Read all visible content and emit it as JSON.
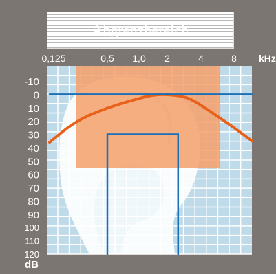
{
  "title": "Abgrenzbereich",
  "chart_data": {
    "type": "line",
    "x_ticks": [
      "0,125",
      "0,5",
      "1,0",
      "2",
      "4",
      "8"
    ],
    "x_unit": "kHz",
    "y_ticks": [
      "-10",
      "0",
      "10",
      "20",
      "30",
      "40",
      "50",
      "60",
      "70",
      "80",
      "90",
      "100",
      "110",
      "120"
    ],
    "y_unit": "dB",
    "ylim": [
      -10,
      120
    ],
    "grid": true,
    "series": [
      {
        "kind": "curve",
        "color": "#e8611a",
        "points": [
          [
            0.125,
            36
          ],
          [
            0.25,
            20
          ],
          [
            0.5,
            10
          ],
          [
            1,
            3
          ],
          [
            1.4,
            0.5
          ],
          [
            2,
            0
          ],
          [
            3,
            2
          ],
          [
            4,
            8
          ],
          [
            6,
            18
          ],
          [
            8,
            25
          ],
          [
            12,
            35
          ]
        ]
      },
      {
        "kind": "line",
        "color": "#1a6fb8",
        "points": [
          [
            0.125,
            0
          ],
          [
            12,
            0
          ]
        ]
      },
      {
        "kind": "box-open",
        "color": "#1a6fb8",
        "points": [
          [
            0.5,
            120
          ],
          [
            0.5,
            30
          ],
          [
            2.5,
            30
          ],
          [
            2.5,
            120
          ]
        ]
      }
    ],
    "highlight_region": {
      "x": [
        0.25,
        6
      ],
      "y": [
        -10,
        55
      ],
      "color": "#f4a06a"
    }
  }
}
